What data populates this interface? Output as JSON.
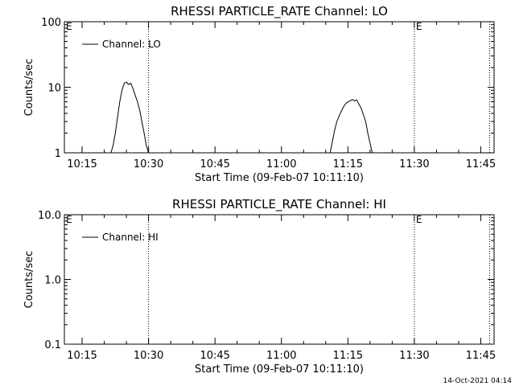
{
  "footer_timestamp": "14-Oct-2021 04:14",
  "chart_data": [
    {
      "type": "line",
      "title": "RHESSI PARTICLE_RATE Channel: LO",
      "xlabel": "Start Time (09-Feb-07 10:11:10)",
      "ylabel": "Counts/sec",
      "y_scale": "log",
      "ylim": [
        1,
        100
      ],
      "y_ticks": [
        {
          "value": 1,
          "label": "1"
        },
        {
          "value": 10,
          "label": "10"
        },
        {
          "value": 100,
          "label": "100"
        }
      ],
      "xlim": [
        "10:11",
        "11:48"
      ],
      "x_ticks": [
        "10:15",
        "10:30",
        "10:45",
        "11:00",
        "11:15",
        "11:30",
        "11:45"
      ],
      "legend": {
        "label": "Channel: LO",
        "placement": "top-left"
      },
      "event_markers": [
        {
          "time": "10:30",
          "label": ""
        },
        {
          "time": "11:30",
          "label": "E"
        },
        {
          "time": "11:47",
          "label": ""
        }
      ],
      "corner_marker": "E",
      "series": [
        {
          "name": "Channel: LO",
          "color": "#000000",
          "points": [
            [
              "10:21:30",
              1.0
            ],
            [
              "10:22:00",
              1.3
            ],
            [
              "10:22:30",
              2.0
            ],
            [
              "10:23:00",
              3.5
            ],
            [
              "10:23:30",
              6.0
            ],
            [
              "10:24:00",
              9.0
            ],
            [
              "10:24:30",
              11.5
            ],
            [
              "10:25:00",
              12.0
            ],
            [
              "10:25:30",
              11.0
            ],
            [
              "10:26:00",
              11.5
            ],
            [
              "10:26:30",
              9.5
            ],
            [
              "10:27:00",
              7.5
            ],
            [
              "10:27:30",
              6.0
            ],
            [
              "10:28:00",
              4.5
            ],
            [
              "10:28:30",
              3.0
            ],
            [
              "10:29:00",
              2.0
            ],
            [
              "10:29:30",
              1.3
            ],
            [
              "10:30:00",
              1.0
            ],
            [
              "11:11:00",
              1.0
            ],
            [
              "11:11:30",
              1.5
            ],
            [
              "11:12:00",
              2.2
            ],
            [
              "11:12:30",
              3.0
            ],
            [
              "11:13:00",
              3.6
            ],
            [
              "11:13:30",
              4.3
            ],
            [
              "11:14:00",
              5.0
            ],
            [
              "11:14:30",
              5.6
            ],
            [
              "11:15:00",
              6.0
            ],
            [
              "11:15:30",
              6.2
            ],
            [
              "11:16:00",
              6.5
            ],
            [
              "11:16:30",
              6.2
            ],
            [
              "11:17:00",
              6.4
            ],
            [
              "11:17:30",
              5.5
            ],
            [
              "11:18:00",
              4.8
            ],
            [
              "11:18:30",
              3.8
            ],
            [
              "11:19:00",
              3.0
            ],
            [
              "11:19:30",
              2.0
            ],
            [
              "11:20:00",
              1.4
            ],
            [
              "11:20:30",
              1.0
            ]
          ]
        }
      ]
    },
    {
      "type": "line",
      "title": "RHESSI PARTICLE_RATE Channel: HI",
      "xlabel": "Start Time (09-Feb-07 10:11:10)",
      "ylabel": "Counts/sec",
      "y_scale": "log",
      "ylim": [
        0.1,
        10
      ],
      "y_ticks": [
        {
          "value": 0.1,
          "label": "0.1"
        },
        {
          "value": 1,
          "label": "1.0"
        },
        {
          "value": 10,
          "label": "10.0"
        }
      ],
      "xlim": [
        "10:11",
        "11:48"
      ],
      "x_ticks": [
        "10:15",
        "10:30",
        "10:45",
        "11:00",
        "11:15",
        "11:30",
        "11:45"
      ],
      "legend": {
        "label": "Channel: HI",
        "placement": "top-left"
      },
      "event_markers": [
        {
          "time": "10:30",
          "label": ""
        },
        {
          "time": "11:30",
          "label": "E"
        },
        {
          "time": "11:47",
          "label": ""
        }
      ],
      "corner_marker": "E",
      "series": [
        {
          "name": "Channel: HI",
          "color": "#000000",
          "points": []
        }
      ]
    }
  ]
}
